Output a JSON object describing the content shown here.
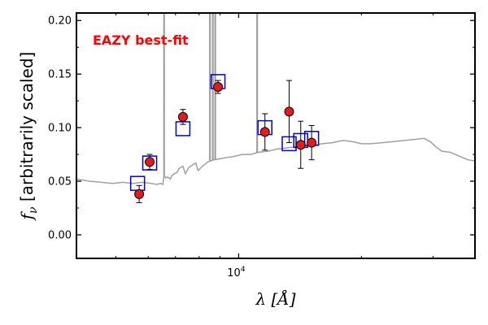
{
  "chart_data": {
    "type": "scatter",
    "title": "",
    "annotation": {
      "text": "EAZY best-fit",
      "color": "#ff0000",
      "placement": "top-left"
    },
    "xlabel": "λ [Å]",
    "ylabel": "f_ν [arbitrarily scaled]",
    "xscale": "log",
    "xlim": [
      4000,
      38000
    ],
    "ylim": [
      -0.022,
      0.207
    ],
    "yticks": [
      0.0,
      0.05,
      0.1,
      0.15,
      0.2
    ],
    "ytick_labels": [
      "0.00",
      "0.05",
      "0.10",
      "0.15",
      "0.20"
    ],
    "xtick_labels": [
      {
        "value": 10000,
        "base": "10",
        "exp": "4"
      }
    ],
    "grid": false,
    "legend": "none",
    "colors": {
      "model": "#a0a0a0",
      "observed": "#e41a1c",
      "model_phot": "#0000cc",
      "annotation": "#ff0000"
    },
    "series": [
      {
        "name": "model-spectrum",
        "kind": "line",
        "points": [
          [
            4000,
            0.052
          ],
          [
            4300,
            0.05
          ],
          [
            4600,
            0.049
          ],
          [
            4900,
            0.048
          ],
          [
            5200,
            0.049
          ],
          [
            5500,
            0.048
          ],
          [
            5800,
            0.049
          ],
          [
            6100,
            0.048
          ],
          [
            6300,
            0.047
          ],
          [
            6450,
            0.048
          ],
          [
            6520,
            0.047
          ],
          [
            6560,
            0.056
          ],
          [
            6620,
            0.053
          ],
          [
            6700,
            0.054
          ],
          [
            6800,
            0.052
          ],
          [
            6850,
            0.055
          ],
          [
            6950,
            0.057
          ],
          [
            7050,
            0.058
          ],
          [
            7150,
            0.062
          ],
          [
            7300,
            0.064
          ],
          [
            7400,
            0.057
          ],
          [
            7550,
            0.063
          ],
          [
            7700,
            0.065
          ],
          [
            7850,
            0.067
          ],
          [
            7950,
            0.06
          ],
          [
            8150,
            0.064
          ],
          [
            8400,
            0.068
          ],
          [
            8700,
            0.07
          ],
          [
            9000,
            0.071
          ],
          [
            9300,
            0.072
          ],
          [
            9700,
            0.073
          ],
          [
            10200,
            0.075
          ],
          [
            10700,
            0.075
          ],
          [
            11200,
            0.077
          ],
          [
            11800,
            0.078
          ],
          [
            12400,
            0.08
          ],
          [
            13000,
            0.081
          ],
          [
            13800,
            0.082
          ],
          [
            14500,
            0.083
          ],
          [
            15200,
            0.083
          ],
          [
            16000,
            0.085
          ],
          [
            17000,
            0.086
          ],
          [
            18000,
            0.088
          ],
          [
            19000,
            0.087
          ],
          [
            20000,
            0.085
          ],
          [
            21000,
            0.085
          ],
          [
            22500,
            0.086
          ],
          [
            24000,
            0.087
          ],
          [
            25500,
            0.088
          ],
          [
            27000,
            0.089
          ],
          [
            28500,
            0.09
          ],
          [
            29500,
            0.087
          ],
          [
            30500,
            0.082
          ],
          [
            31500,
            0.078
          ],
          [
            33000,
            0.077
          ],
          [
            35000,
            0.073
          ],
          [
            36500,
            0.07
          ],
          [
            38000,
            0.069
          ]
        ],
        "emission_lines": [
          {
            "wavelength": 6563,
            "peak": 0.207
          },
          {
            "wavelength": 8500,
            "peak": 0.207
          },
          {
            "wavelength": 8640,
            "peak": 0.207
          },
          {
            "wavelength": 8760,
            "peak": 0.207
          },
          {
            "wavelength": 11100,
            "peak": 0.207
          }
        ]
      },
      {
        "name": "model-photometry",
        "kind": "scatter",
        "marker": "open-square",
        "points": [
          [
            5650,
            0.048
          ],
          [
            6050,
            0.067
          ],
          [
            7300,
            0.099
          ],
          [
            8900,
            0.143
          ],
          [
            11600,
            0.1
          ],
          [
            13300,
            0.085
          ],
          [
            14200,
            0.088
          ],
          [
            15100,
            0.09
          ]
        ]
      },
      {
        "name": "observed-photometry",
        "kind": "scatter",
        "marker": "filled-circle",
        "points": [
          {
            "x": 5700,
            "y": 0.038,
            "err": 0.008
          },
          {
            "x": 6050,
            "y": 0.068,
            "err": 0.007
          },
          {
            "x": 7300,
            "y": 0.11,
            "err": 0.007
          },
          {
            "x": 8900,
            "y": 0.138,
            "err": 0.006
          },
          {
            "x": 11600,
            "y": 0.096,
            "err": 0.017
          },
          {
            "x": 13300,
            "y": 0.115,
            "err": 0.029
          },
          {
            "x": 14200,
            "y": 0.084,
            "err": 0.022
          },
          {
            "x": 15100,
            "y": 0.086,
            "err": 0.016
          }
        ]
      }
    ]
  }
}
